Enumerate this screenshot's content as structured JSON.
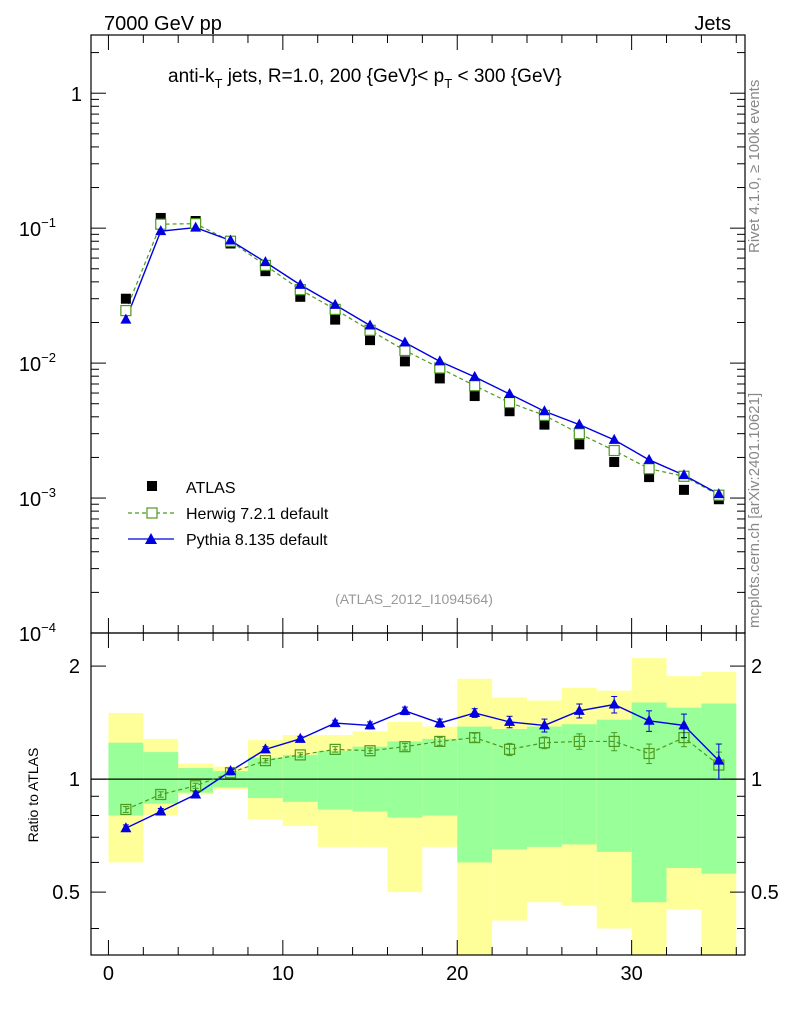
{
  "header": {
    "left": "7000 GeV pp",
    "right": "Jets"
  },
  "side_labels": {
    "rivet": "Rivet 4.1.0, ≥ 100k events",
    "mcplots": "mcplots.cern.ch [arXiv:2401.10621]"
  },
  "chart_data": [
    {
      "type": "line",
      "panel": "main",
      "y_scale": "log",
      "title_parts": {
        "a": "anti-k",
        "a_sub": "T",
        "b": " jets, R=1.0, 200 {GeV}< p",
        "b_sub": "T",
        "c": " < 300 {GeV}"
      },
      "xlabel": "",
      "ylabel": "",
      "xlim": [
        -1,
        36.5
      ],
      "ylim": [
        0.0001,
        2.7
      ],
      "y_ticks": [
        {
          "value": 1,
          "base": "1",
          "exp": ""
        },
        {
          "value": 0.1,
          "base": "10",
          "exp": "−1"
        },
        {
          "value": 0.01,
          "base": "10",
          "exp": "−2"
        },
        {
          "value": 0.001,
          "base": "10",
          "exp": "−3"
        },
        {
          "value": 0.0001,
          "base": "10",
          "exp": "−4"
        }
      ],
      "watermark": "(ATLAS_2012_I1094564)",
      "legend": [
        "ATLAS",
        "Herwig 7.2.1 default",
        "Pythia 8.135 default"
      ],
      "x": [
        1,
        3,
        5,
        7,
        9,
        11,
        13,
        15,
        17,
        19,
        21,
        23,
        25,
        27,
        29,
        31,
        33,
        35
      ],
      "series": [
        {
          "name": "ATLAS",
          "color": "#000000",
          "marker": "filled-square",
          "values": [
            0.03,
            0.119,
            0.113,
            0.077,
            0.048,
            0.031,
            0.021,
            0.0148,
            0.0103,
            0.0077,
            0.0057,
            0.0044,
            0.0035,
            0.0025,
            0.00185,
            0.00143,
            0.00115,
            0.00098
          ]
        },
        {
          "name": "Herwig 7.2.1 default",
          "color": "#4c9a1f",
          "marker": "open-square",
          "line": "dashed",
          "values": [
            0.0245,
            0.107,
            0.108,
            0.08,
            0.053,
            0.035,
            0.025,
            0.0175,
            0.0124,
            0.0092,
            0.0068,
            0.0051,
            0.0041,
            0.003,
            0.00225,
            0.00165,
            0.00145,
            0.00105
          ]
        },
        {
          "name": "Pythia 8.135 default",
          "color": "#0000e0",
          "marker": "filled-triangle",
          "line": "solid",
          "values": [
            0.021,
            0.095,
            0.101,
            0.081,
            0.056,
            0.038,
            0.027,
            0.019,
            0.0142,
            0.0103,
            0.0079,
            0.0059,
            0.0044,
            0.0035,
            0.0027,
            0.00192,
            0.00148,
            0.00107
          ]
        }
      ]
    },
    {
      "type": "line",
      "panel": "ratio",
      "y_scale": "log",
      "ylabel": "Ratio to ATLAS",
      "xlim": [
        -1,
        36.5
      ],
      "ylim": [
        0.34,
        2.45
      ],
      "y_ticks": [
        {
          "value": 2,
          "label": "2"
        },
        {
          "value": 1,
          "label": "1"
        },
        {
          "value": 0.5,
          "label": "0.5"
        }
      ],
      "x_ticks": [
        {
          "value": 0,
          "label": "0"
        },
        {
          "value": 10,
          "label": "10"
        },
        {
          "value": 20,
          "label": "20"
        },
        {
          "value": 30,
          "label": "30"
        }
      ],
      "bins": [
        [
          0,
          2
        ],
        [
          2,
          4
        ],
        [
          4,
          6
        ],
        [
          6,
          8
        ],
        [
          8,
          10
        ],
        [
          10,
          12
        ],
        [
          12,
          14
        ],
        [
          14,
          16
        ],
        [
          16,
          18
        ],
        [
          18,
          20
        ],
        [
          20,
          22
        ],
        [
          22,
          24
        ],
        [
          24,
          26
        ],
        [
          26,
          28
        ],
        [
          28,
          30
        ],
        [
          30,
          32
        ],
        [
          32,
          34
        ],
        [
          34,
          36
        ]
      ],
      "band_stat": {
        "color": "#99ff99",
        "lo": [
          0.8,
          0.86,
          0.92,
          0.95,
          0.89,
          0.87,
          0.83,
          0.82,
          0.79,
          0.8,
          0.6,
          0.65,
          0.66,
          0.67,
          0.64,
          0.47,
          0.58,
          0.56
        ],
        "hi": [
          1.25,
          1.18,
          1.07,
          1.05,
          1.14,
          1.16,
          1.19,
          1.22,
          1.26,
          1.28,
          1.38,
          1.36,
          1.38,
          1.4,
          1.44,
          1.6,
          1.55,
          1.59
        ]
      },
      "band_total": {
        "color": "#ffff99",
        "lo": [
          0.6,
          0.8,
          0.91,
          0.94,
          0.78,
          0.75,
          0.66,
          0.66,
          0.5,
          0.66,
          0.3,
          0.42,
          0.47,
          0.46,
          0.4,
          0.3,
          0.45,
          0.33
        ],
        "hi": [
          1.5,
          1.28,
          1.1,
          1.08,
          1.27,
          1.31,
          1.31,
          1.34,
          1.42,
          1.38,
          1.85,
          1.65,
          1.62,
          1.75,
          1.72,
          2.1,
          1.88,
          1.93
        ]
      },
      "series": [
        {
          "name": "Herwig 7.2.1 default",
          "color": "#4c9a1f",
          "values": [
            0.83,
            0.91,
            0.96,
            1.04,
            1.12,
            1.16,
            1.2,
            1.19,
            1.22,
            1.26,
            1.29,
            1.2,
            1.25,
            1.26,
            1.26,
            1.17,
            1.29,
            1.09
          ],
          "errors": [
            0.015,
            0.015,
            0.015,
            0.015,
            0.015,
            0.015,
            0.02,
            0.02,
            0.025,
            0.03,
            0.035,
            0.045,
            0.045,
            0.06,
            0.07,
            0.07,
            0.07,
            0.09
          ]
        },
        {
          "name": "Pythia 8.135 default",
          "color": "#0000e0",
          "values": [
            0.74,
            0.82,
            0.91,
            1.05,
            1.2,
            1.28,
            1.41,
            1.39,
            1.52,
            1.41,
            1.5,
            1.42,
            1.39,
            1.52,
            1.58,
            1.43,
            1.39,
            1.12
          ],
          "errors": [
            0.015,
            0.015,
            0.015,
            0.015,
            0.02,
            0.02,
            0.025,
            0.03,
            0.035,
            0.035,
            0.04,
            0.05,
            0.055,
            0.065,
            0.08,
            0.09,
            0.1,
            0.12
          ]
        }
      ],
      "reference": 1
    }
  ]
}
